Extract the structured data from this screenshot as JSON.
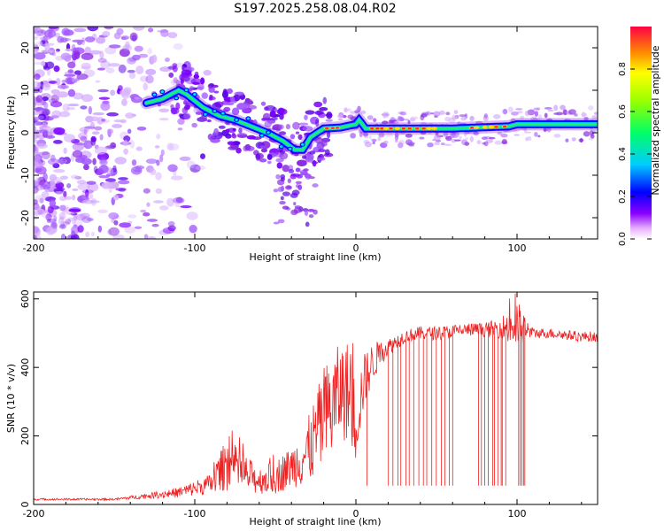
{
  "title": "S197.2025.258.08.04.R02",
  "chart_data": [
    {
      "type": "heatmap",
      "xlabel": "Height of straight line (km)",
      "ylabel": "Frequency (Hz)",
      "xlim": [
        -200,
        150
      ],
      "ylim": [
        -25,
        25
      ],
      "xticks": [
        -200,
        -100,
        0,
        100
      ],
      "yticks": [
        -20,
        -10,
        0,
        10,
        20
      ],
      "ridge": {
        "x": [
          -130,
          -120,
          -110,
          -105,
          -95,
          -85,
          -75,
          -65,
          -55,
          -45,
          -38,
          -33,
          -28,
          -20,
          -10,
          0,
          2,
          6,
          20,
          40,
          60,
          80,
          95,
          100,
          110,
          130,
          150
        ],
        "y": [
          7,
          8,
          10,
          9,
          6,
          4,
          3,
          1.5,
          0,
          -2,
          -4,
          -4,
          -1,
          1,
          1.2,
          2,
          3,
          1,
          1,
          1,
          1,
          1.3,
          1.5,
          2,
          2,
          2,
          2
        ],
        "strong_segments": [
          [
            -18,
            -10
          ],
          [
            10,
            52
          ],
          [
            72,
            96
          ]
        ]
      },
      "colorbar": {
        "label": "Normalized spectral amplitude",
        "min": 0,
        "max": 1,
        "ticks": [
          "0.0",
          "0.2",
          "0.4",
          "0.6",
          "0.8"
        ]
      }
    },
    {
      "type": "line",
      "xlabel": "Height of straight line (km)",
      "ylabel": "SNR (10 * v/v)",
      "xlim": [
        -200,
        150
      ],
      "ylim": [
        0,
        620
      ],
      "xticks": [
        -200,
        -100,
        0,
        100
      ],
      "yticks": [
        0,
        200,
        400,
        600
      ],
      "series": [
        {
          "name": "SNR",
          "color": "#ee2222",
          "trend_x": [
            -200,
            -150,
            -130,
            -110,
            -90,
            -80,
            -70,
            -60,
            -50,
            -40,
            -30,
            -25,
            -20,
            -15,
            -10,
            -5,
            0,
            5,
            10,
            15,
            20,
            30,
            40,
            50,
            60,
            70,
            80,
            90,
            95,
            100,
            105,
            110,
            120,
            130,
            140,
            150
          ],
          "trend_y": [
            15,
            15,
            25,
            35,
            60,
            120,
            90,
            70,
            80,
            110,
            150,
            200,
            250,
            280,
            330,
            330,
            240,
            360,
            410,
            440,
            460,
            490,
            500,
            500,
            505,
            510,
            510,
            515,
            520,
            520,
            510,
            500,
            500,
            495,
            490,
            490
          ],
          "noise": [
            3,
            3,
            8,
            15,
            30,
            80,
            60,
            40,
            50,
            60,
            100,
            120,
            150,
            160,
            140,
            150,
            120,
            80,
            60,
            40,
            25,
            20,
            20,
            20,
            20,
            20,
            20,
            30,
            60,
            80,
            40,
            15,
            15,
            15,
            15,
            15
          ],
          "dips_x": [
            7,
            20,
            23,
            26,
            28,
            31,
            33,
            36,
            39,
            42,
            44,
            47,
            50,
            53,
            55,
            58,
            60,
            76,
            78,
            80,
            82,
            85,
            86,
            88,
            90,
            91,
            93,
            101,
            102,
            103,
            104,
            105
          ],
          "dips_y": 55
        }
      ]
    }
  ]
}
